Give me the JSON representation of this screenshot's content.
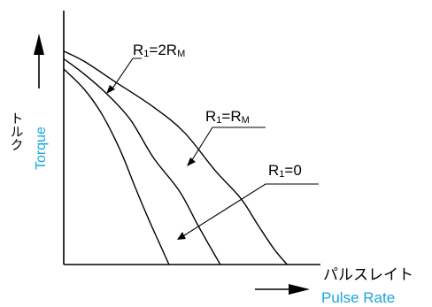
{
  "chart_data": {
    "type": "line",
    "title": "",
    "xlabel": {
      "ja": "パルスレイト",
      "en": "Pulse Rate"
    },
    "ylabel": {
      "ja": "トルク",
      "en": "Torque"
    },
    "x_ticks": [],
    "y_ticks": [],
    "grid": false,
    "series": [
      {
        "label": {
          "main": "R",
          "sub1": "1",
          "mid": "=2R",
          "sub2": "M"
        },
        "points": [
          [
            0,
            0.84
          ],
          [
            0.08,
            0.8
          ],
          [
            0.2,
            0.72
          ],
          [
            0.35,
            0.62
          ],
          [
            0.47,
            0.52
          ],
          [
            0.59,
            0.37
          ],
          [
            0.69,
            0.26
          ],
          [
            0.76,
            0.15
          ],
          [
            0.82,
            0.06
          ],
          [
            0.87,
            0.0
          ]
        ]
      },
      {
        "label": {
          "main": "R",
          "sub1": "1",
          "mid": "=R",
          "sub2": "M"
        },
        "points": [
          [
            0,
            0.81
          ],
          [
            0.08,
            0.75
          ],
          [
            0.17,
            0.67
          ],
          [
            0.26,
            0.57
          ],
          [
            0.35,
            0.42
          ],
          [
            0.45,
            0.29
          ],
          [
            0.52,
            0.16
          ],
          [
            0.57,
            0.07
          ],
          [
            0.61,
            0.0
          ]
        ]
      },
      {
        "label": {
          "main": "R",
          "sub1": "1",
          "mid": "=0",
          "sub2": ""
        },
        "points": [
          [
            0,
            0.77
          ],
          [
            0.08,
            0.69
          ],
          [
            0.15,
            0.59
          ],
          [
            0.22,
            0.45
          ],
          [
            0.28,
            0.3
          ],
          [
            0.33,
            0.18
          ],
          [
            0.37,
            0.09
          ],
          [
            0.41,
            0.0
          ]
        ]
      }
    ]
  }
}
